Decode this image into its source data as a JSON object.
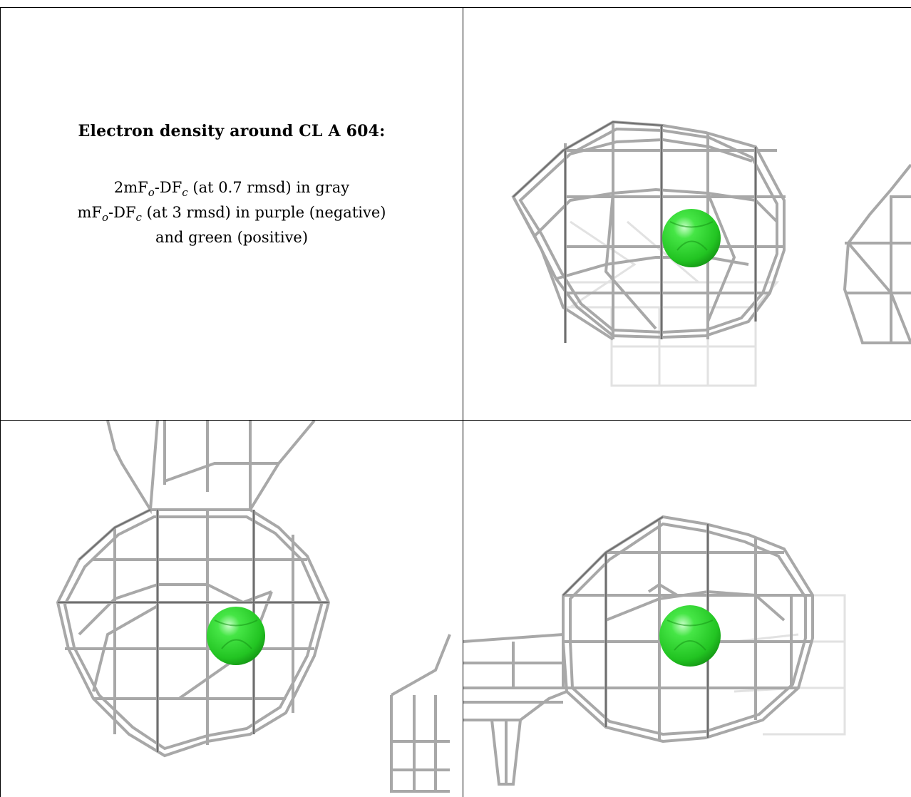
{
  "caption": {
    "title": "Electron density around CL A 604:",
    "line1_pre": "2mF",
    "line1_sub1": "o",
    "line1_mid": "-DF",
    "line1_sub2": "c",
    "line1_post": " (at 0.7 rmsd) in gray",
    "line2_pre": "mF",
    "line2_sub1": "o",
    "line2_mid": "-DF",
    "line2_sub2": "c",
    "line2_post": " (at 3 rmsd) in purple (negative)",
    "line3": "and green (positive)"
  },
  "colors": {
    "mesh": "#a9a9a9",
    "mesh_dark": "#6f6f6f",
    "mesh_faint": "#dedede",
    "atom": "#2fd42f",
    "atom_dark": "#159515",
    "border": "#000000"
  },
  "views": [
    {
      "name": "view-top-right",
      "atom": "CL"
    },
    {
      "name": "view-bottom-left",
      "atom": "CL"
    },
    {
      "name": "view-bottom-right",
      "atom": "CL"
    }
  ]
}
